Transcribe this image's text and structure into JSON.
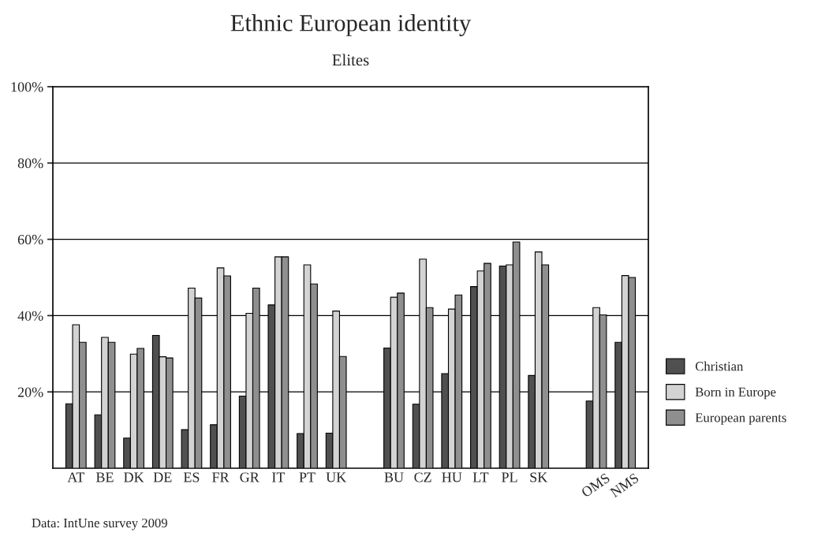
{
  "chart_data": {
    "type": "bar",
    "title": "Ethnic European identity",
    "subtitle": "Elites",
    "categories": [
      "AT",
      "BE",
      "DK",
      "DE",
      "ES",
      "FR",
      "GR",
      "IT",
      "PT",
      "UK",
      null,
      "BU",
      "CZ",
      "HU",
      "LT",
      "PL",
      "SK",
      null,
      "OMS",
      "NMS"
    ],
    "series": [
      {
        "name": "Christian",
        "color": "#505050",
        "values": [
          16.9,
          14.0,
          7.9,
          34.8,
          10.1,
          11.4,
          18.9,
          42.8,
          9.1,
          9.2,
          null,
          31.5,
          16.8,
          24.8,
          47.6,
          53.0,
          24.3,
          null,
          17.6,
          33.0
        ]
      },
      {
        "name": "Born in Europe",
        "color": "#d3d3d3",
        "values": [
          37.6,
          34.3,
          29.9,
          29.2,
          47.2,
          52.5,
          40.6,
          55.4,
          53.3,
          41.2,
          null,
          44.8,
          54.8,
          41.7,
          51.7,
          53.3,
          56.7,
          null,
          42.1,
          50.5
        ]
      },
      {
        "name": "European parents",
        "color": "#8f8f8f",
        "values": [
          33.0,
          33.0,
          31.4,
          28.9,
          44.6,
          50.4,
          47.2,
          55.4,
          48.3,
          29.3,
          null,
          45.9,
          42.1,
          45.4,
          53.7,
          59.3,
          53.3,
          null,
          40.2,
          50.0
        ]
      }
    ],
    "ylim": [
      0,
      100
    ],
    "yticks": [
      {
        "value": 20,
        "label": "20%"
      },
      {
        "value": 40,
        "label": "40%"
      },
      {
        "value": 60,
        "label": "60%"
      },
      {
        "value": 80,
        "label": "80%"
      },
      {
        "value": 100,
        "label": "100%"
      }
    ],
    "grid": "y",
    "legend": "right",
    "annotations": [
      "Data: IntUne survey 2009"
    ]
  }
}
